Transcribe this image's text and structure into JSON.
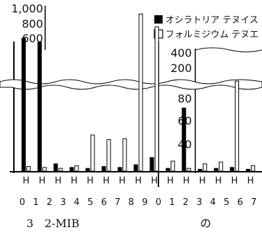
{
  "chart_data": {
    "type": "bar",
    "ylim": [
      0,
      1000
    ],
    "y_ticks_upper": [
      "1,000",
      "800",
      "600"
    ],
    "y_ticks_right": [
      "400",
      "200",
      "80",
      "60",
      "40",
      "20"
    ],
    "legend": [
      "オシラトリア テヌイス",
      "フォルミジウム テヌエ"
    ],
    "x_numbers": [
      "0",
      "1",
      "2",
      "3",
      "4",
      "5",
      "6",
      "7",
      "8",
      "9",
      "0",
      "1",
      "2",
      "3",
      "4",
      "5",
      "6",
      "7"
    ],
    "category_labels_left": [
      "H",
      "H",
      "H",
      "H",
      "H",
      "H",
      "H",
      "H",
      "H",
      "H"
    ],
    "category_labels_right": [
      "H",
      "H",
      "H",
      "H",
      "H"
    ],
    "series": [
      {
        "name": "オシラトリア テヌイス",
        "values": [
          630,
          580,
          8,
          4,
          3,
          5,
          4,
          7,
          15,
          3,
          70,
          2,
          3,
          4,
          2
        ]
      },
      {
        "name": "フォルミジウム テヌエ",
        "values": [
          5,
          4,
          3,
          6,
          40,
          35,
          36,
          930,
          770,
          11,
          3,
          8,
          10,
          100,
          6
        ]
      }
    ]
  },
  "caption": {
    "left": "3　2-MIB",
    "right": "の"
  },
  "colors": {
    "black": "#000000",
    "white": "#ffffff"
  }
}
